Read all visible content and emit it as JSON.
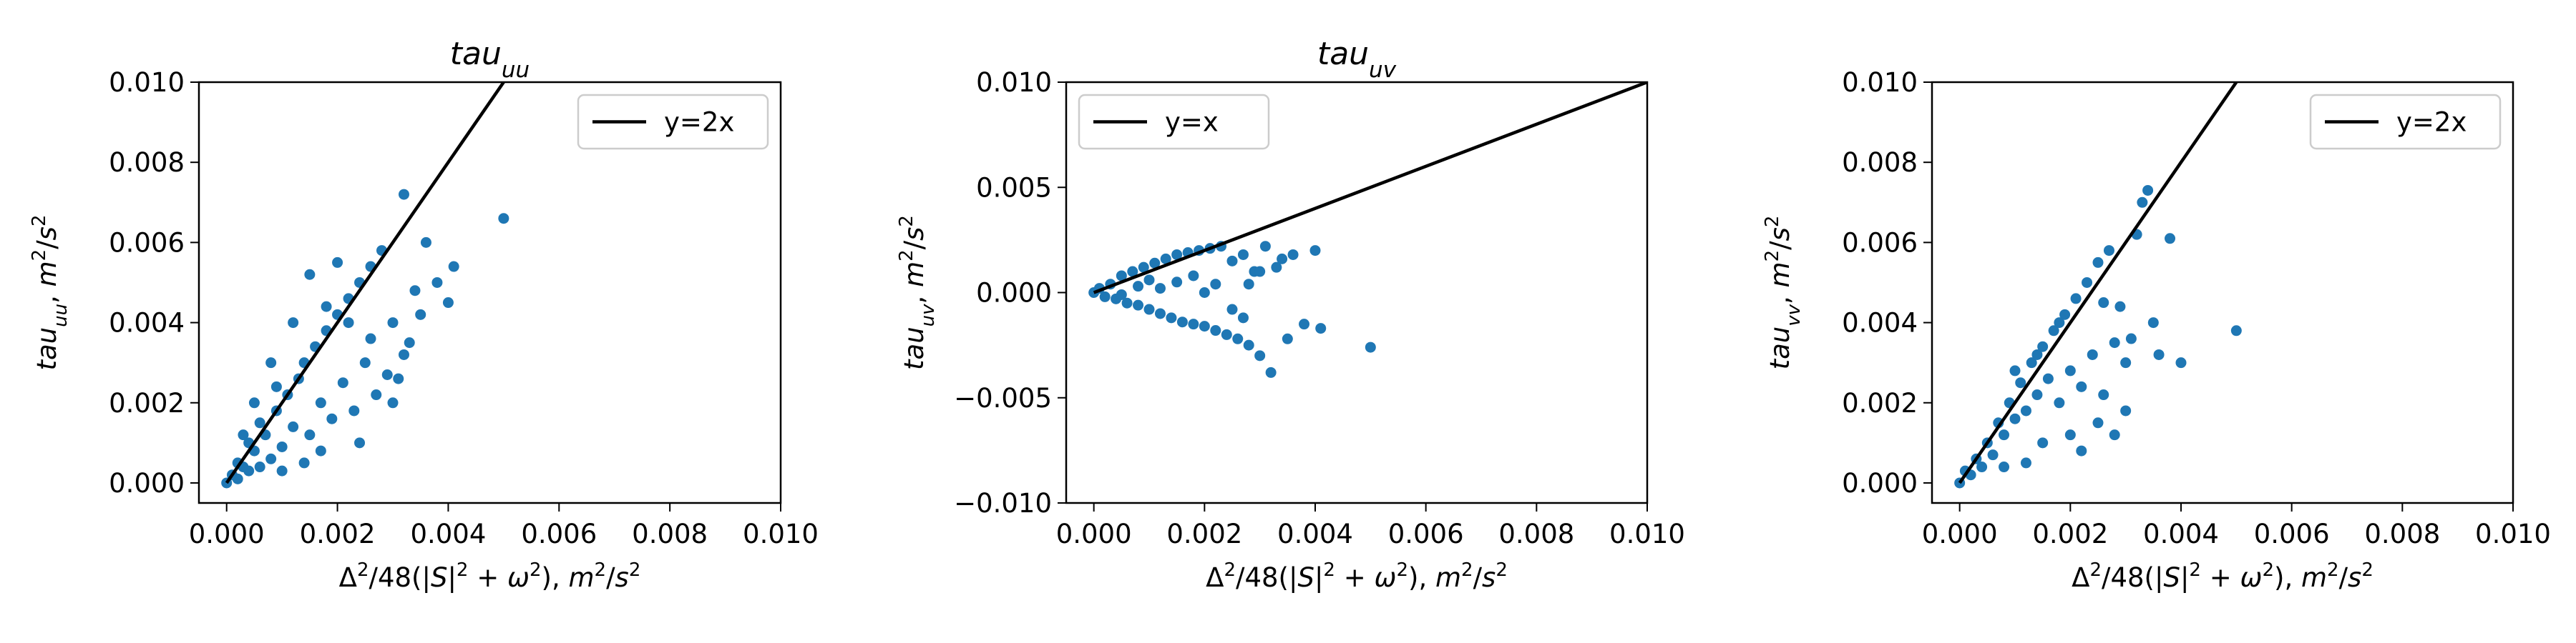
{
  "figure": {
    "background": "#ffffff",
    "point_color": "#1f77b4",
    "line_color": "#000000"
  },
  "chart_data": [
    {
      "type": "scatter",
      "title": {
        "main": "tau",
        "sub": "uu"
      },
      "xlabel": "Δ²/48(|S|²+ω²), m²/s²",
      "ylabel": "tau_uu, m²/s²",
      "xlim": [
        -0.0005,
        0.01
      ],
      "ylim": [
        -0.0005,
        0.01
      ],
      "xticks": [
        "0.000",
        "0.002",
        "0.004",
        "0.006",
        "0.008",
        "0.010"
      ],
      "xtick_values": [
        0,
        0.002,
        0.004,
        0.006,
        0.008,
        0.01
      ],
      "yticks": [
        "0.000",
        "0.002",
        "0.004",
        "0.006",
        "0.008",
        "0.010"
      ],
      "ytick_values": [
        0,
        0.002,
        0.004,
        0.006,
        0.008,
        0.01
      ],
      "reference_line": {
        "label": "y=2x",
        "slope": 2
      },
      "legend_position": "top-right",
      "points": [
        [
          0.0,
          0.0
        ],
        [
          0.0001,
          0.0002
        ],
        [
          0.0002,
          0.0001
        ],
        [
          0.0003,
          0.0004
        ],
        [
          0.0002,
          0.0005
        ],
        [
          0.0004,
          0.0003
        ],
        [
          0.0005,
          0.0008
        ],
        [
          0.0006,
          0.0004
        ],
        [
          0.0004,
          0.001
        ],
        [
          0.0007,
          0.0012
        ],
        [
          0.0008,
          0.0006
        ],
        [
          0.0006,
          0.0015
        ],
        [
          0.0009,
          0.0018
        ],
        [
          0.001,
          0.0009
        ],
        [
          0.0011,
          0.0022
        ],
        [
          0.0012,
          0.0014
        ],
        [
          0.0013,
          0.0026
        ],
        [
          0.0009,
          0.0024
        ],
        [
          0.0014,
          0.003
        ],
        [
          0.0015,
          0.0012
        ],
        [
          0.0016,
          0.0034
        ],
        [
          0.0017,
          0.002
        ],
        [
          0.0018,
          0.0038
        ],
        [
          0.0019,
          0.0016
        ],
        [
          0.002,
          0.0042
        ],
        [
          0.0021,
          0.0025
        ],
        [
          0.0022,
          0.0046
        ],
        [
          0.0023,
          0.0018
        ],
        [
          0.0024,
          0.005
        ],
        [
          0.0025,
          0.003
        ],
        [
          0.0026,
          0.0054
        ],
        [
          0.0027,
          0.0022
        ],
        [
          0.0028,
          0.0058
        ],
        [
          0.003,
          0.004
        ],
        [
          0.0031,
          0.0026
        ],
        [
          0.0032,
          0.0072
        ],
        [
          0.0033,
          0.0035
        ],
        [
          0.0034,
          0.0048
        ],
        [
          0.0035,
          0.0042
        ],
        [
          0.0036,
          0.006
        ],
        [
          0.0038,
          0.005
        ],
        [
          0.004,
          0.0045
        ],
        [
          0.0041,
          0.0054
        ],
        [
          0.005,
          0.0066
        ],
        [
          0.0015,
          0.0052
        ],
        [
          0.002,
          0.0055
        ],
        [
          0.0022,
          0.004
        ],
        [
          0.0029,
          0.0027
        ],
        [
          0.003,
          0.002
        ],
        [
          0.0012,
          0.004
        ],
        [
          0.0008,
          0.003
        ],
        [
          0.0005,
          0.002
        ],
        [
          0.0003,
          0.0012
        ],
        [
          0.0017,
          0.0008
        ],
        [
          0.0024,
          0.001
        ],
        [
          0.0018,
          0.0044
        ],
        [
          0.0026,
          0.0036
        ],
        [
          0.0032,
          0.0032
        ],
        [
          0.0014,
          0.0005
        ],
        [
          0.001,
          0.0003
        ]
      ]
    },
    {
      "type": "scatter",
      "title": {
        "main": "tau",
        "sub": "uv"
      },
      "xlabel": "Δ²/48(|S|²+ω²), m²/s²",
      "ylabel": "tau_uv, m²/s²",
      "xlim": [
        -0.0005,
        0.01
      ],
      "ylim": [
        -0.01,
        0.01
      ],
      "xticks": [
        "0.000",
        "0.002",
        "0.004",
        "0.006",
        "0.008",
        "0.010"
      ],
      "xtick_values": [
        0,
        0.002,
        0.004,
        0.006,
        0.008,
        0.01
      ],
      "yticks": [
        "−0.010",
        "−0.005",
        "0.000",
        "0.005",
        "0.010"
      ],
      "ytick_values": [
        -0.01,
        -0.005,
        0,
        0.005,
        0.01
      ],
      "reference_line": {
        "label": "y=x",
        "slope": 1
      },
      "legend_position": "top-left",
      "points": [
        [
          0.0,
          0.0
        ],
        [
          0.0001,
          0.0002
        ],
        [
          0.0002,
          -0.0002
        ],
        [
          0.0003,
          0.0004
        ],
        [
          0.0004,
          -0.0003
        ],
        [
          0.0005,
          0.0008
        ],
        [
          0.0006,
          -0.0005
        ],
        [
          0.0007,
          0.001
        ],
        [
          0.0008,
          -0.0006
        ],
        [
          0.0009,
          0.0012
        ],
        [
          0.001,
          -0.0008
        ],
        [
          0.0011,
          0.0014
        ],
        [
          0.0012,
          -0.001
        ],
        [
          0.0013,
          0.0016
        ],
        [
          0.0014,
          -0.0012
        ],
        [
          0.0015,
          0.0018
        ],
        [
          0.0016,
          -0.0014
        ],
        [
          0.0017,
          0.0019
        ],
        [
          0.0018,
          -0.0015
        ],
        [
          0.0019,
          0.002
        ],
        [
          0.002,
          -0.0016
        ],
        [
          0.0021,
          0.0021
        ],
        [
          0.0022,
          -0.0018
        ],
        [
          0.0023,
          0.0022
        ],
        [
          0.0024,
          -0.002
        ],
        [
          0.0025,
          0.0015
        ],
        [
          0.0026,
          -0.0022
        ],
        [
          0.0027,
          0.0018
        ],
        [
          0.0028,
          -0.0025
        ],
        [
          0.0029,
          0.001
        ],
        [
          0.003,
          -0.003
        ],
        [
          0.0031,
          0.0022
        ],
        [
          0.0032,
          -0.0038
        ],
        [
          0.0033,
          0.0012
        ],
        [
          0.0034,
          0.0016
        ],
        [
          0.0035,
          -0.0022
        ],
        [
          0.0036,
          0.0018
        ],
        [
          0.0038,
          -0.0015
        ],
        [
          0.004,
          0.002
        ],
        [
          0.0041,
          -0.0017
        ],
        [
          0.005,
          -0.0026
        ],
        [
          0.0015,
          0.0005
        ],
        [
          0.002,
          0.0
        ],
        [
          0.0025,
          -0.0008
        ],
        [
          0.0018,
          0.0008
        ],
        [
          0.0022,
          0.0004
        ],
        [
          0.0012,
          0.0002
        ],
        [
          0.0008,
          0.0003
        ],
        [
          0.0005,
          -0.0001
        ],
        [
          0.0028,
          0.0004
        ],
        [
          0.003,
          0.001
        ],
        [
          0.001,
          0.0006
        ],
        [
          0.0027,
          -0.0012
        ]
      ]
    },
    {
      "type": "scatter",
      "title": null,
      "xlabel": "Δ²/48(|S|²+ω²), m²/s²",
      "ylabel": "tau_vv, m²/s²",
      "xlim": [
        -0.0005,
        0.01
      ],
      "ylim": [
        -0.0005,
        0.01
      ],
      "xticks": [
        "0.000",
        "0.002",
        "0.004",
        "0.006",
        "0.008",
        "0.010"
      ],
      "xtick_values": [
        0,
        0.002,
        0.004,
        0.006,
        0.008,
        0.01
      ],
      "yticks": [
        "0.000",
        "0.002",
        "0.004",
        "0.006",
        "0.008",
        "0.010"
      ],
      "ytick_values": [
        0,
        0.002,
        0.004,
        0.006,
        0.008,
        0.01
      ],
      "reference_line": {
        "label": "y=2x",
        "slope": 2
      },
      "legend_position": "top-right",
      "points": [
        [
          0.0,
          0.0
        ],
        [
          0.0001,
          0.0003
        ],
        [
          0.0002,
          0.0002
        ],
        [
          0.0003,
          0.0006
        ],
        [
          0.0004,
          0.0004
        ],
        [
          0.0005,
          0.001
        ],
        [
          0.0006,
          0.0007
        ],
        [
          0.0007,
          0.0015
        ],
        [
          0.0008,
          0.0012
        ],
        [
          0.0009,
          0.002
        ],
        [
          0.001,
          0.0016
        ],
        [
          0.0011,
          0.0025
        ],
        [
          0.0012,
          0.0018
        ],
        [
          0.0013,
          0.003
        ],
        [
          0.0014,
          0.0022
        ],
        [
          0.0015,
          0.0034
        ],
        [
          0.0016,
          0.0026
        ],
        [
          0.0017,
          0.0038
        ],
        [
          0.0018,
          0.002
        ],
        [
          0.0019,
          0.0042
        ],
        [
          0.002,
          0.0028
        ],
        [
          0.0021,
          0.0046
        ],
        [
          0.0022,
          0.0024
        ],
        [
          0.0023,
          0.005
        ],
        [
          0.0024,
          0.0032
        ],
        [
          0.0025,
          0.0055
        ],
        [
          0.0026,
          0.0022
        ],
        [
          0.0027,
          0.0058
        ],
        [
          0.0028,
          0.0035
        ],
        [
          0.0029,
          0.0044
        ],
        [
          0.003,
          0.003
        ],
        [
          0.0031,
          0.0036
        ],
        [
          0.0032,
          0.0062
        ],
        [
          0.0033,
          0.007
        ],
        [
          0.0034,
          0.0073
        ],
        [
          0.0035,
          0.004
        ],
        [
          0.0036,
          0.0032
        ],
        [
          0.0038,
          0.0061
        ],
        [
          0.004,
          0.003
        ],
        [
          0.005,
          0.0038
        ],
        [
          0.0015,
          0.001
        ],
        [
          0.002,
          0.0012
        ],
        [
          0.0025,
          0.0015
        ],
        [
          0.003,
          0.0018
        ],
        [
          0.0012,
          0.0005
        ],
        [
          0.0008,
          0.0004
        ],
        [
          0.0022,
          0.0008
        ],
        [
          0.0018,
          0.004
        ],
        [
          0.0014,
          0.0032
        ],
        [
          0.0026,
          0.0045
        ],
        [
          0.001,
          0.0028
        ],
        [
          0.0028,
          0.0012
        ]
      ]
    }
  ]
}
